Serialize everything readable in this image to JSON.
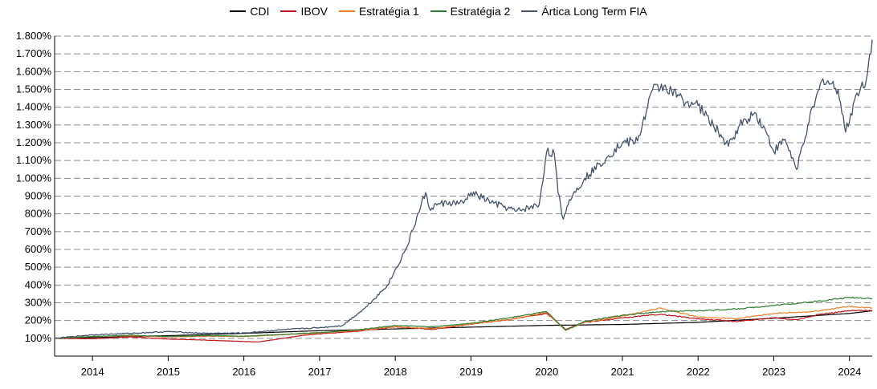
{
  "chart_data": {
    "type": "line",
    "title": "",
    "xlabel": "",
    "ylabel": "",
    "x_ticks": [
      "2014",
      "2015",
      "2016",
      "2017",
      "2018",
      "2019",
      "2020",
      "2021",
      "2022",
      "2023",
      "2024"
    ],
    "y_ticks": [
      "100%",
      "200%",
      "300%",
      "400%",
      "500%",
      "600%",
      "700%",
      "800%",
      "900%",
      "1.000%",
      "1.100%",
      "1.200%",
      "1.300%",
      "1.400%",
      "1.500%",
      "1.600%",
      "1.700%",
      "1.800%"
    ],
    "xlim": [
      2013.5,
      2024.3
    ],
    "ylim": [
      0,
      1800
    ],
    "grid": "horizontal dashed",
    "legend_position": "top",
    "series": [
      {
        "name": "CDI",
        "color": "#000000",
        "x": [
          2013.5,
          2014,
          2015,
          2016,
          2017,
          2018,
          2019,
          2020,
          2021,
          2022,
          2023,
          2024,
          2024.3
        ],
        "y": [
          100,
          104,
          115,
          128,
          143,
          153,
          163,
          173,
          178,
          190,
          213,
          240,
          255
        ]
      },
      {
        "name": "IBOV",
        "color": "#c0141c",
        "x": [
          2013.5,
          2014,
          2014.5,
          2015,
          2015.5,
          2016,
          2016.2,
          2016.8,
          2017,
          2017.5,
          2018,
          2018.5,
          2019,
          2019.5,
          2020,
          2020.25,
          2020.5,
          2021,
          2021.5,
          2022,
          2022.5,
          2023,
          2023.3,
          2023.6,
          2024,
          2024.3
        ],
        "y": [
          100,
          98,
          108,
          96,
          90,
          82,
          80,
          118,
          125,
          140,
          165,
          150,
          180,
          205,
          240,
          150,
          190,
          215,
          235,
          210,
          195,
          215,
          205,
          235,
          255,
          258
        ]
      },
      {
        "name": "Estratégia 1",
        "color": "#f07e26",
        "x": [
          2013.5,
          2014,
          2014.5,
          2015,
          2015.5,
          2016,
          2016.5,
          2017,
          2017.5,
          2018,
          2018.5,
          2019,
          2019.5,
          2020,
          2020.25,
          2020.5,
          2021,
          2021.5,
          2022,
          2022.5,
          2023,
          2023.5,
          2024,
          2024.3
        ],
        "y": [
          100,
          110,
          115,
          108,
          112,
          110,
          120,
          130,
          145,
          165,
          155,
          180,
          205,
          245,
          145,
          190,
          225,
          270,
          220,
          210,
          240,
          250,
          280,
          270
        ]
      },
      {
        "name": "Estratégia 2",
        "color": "#2e7d32",
        "x": [
          2013.5,
          2014,
          2014.5,
          2015,
          2015.5,
          2016,
          2016.5,
          2017,
          2017.5,
          2018,
          2018.5,
          2019,
          2019.5,
          2020,
          2020.25,
          2020.5,
          2021,
          2021.5,
          2022,
          2022.5,
          2023,
          2023.5,
          2024,
          2024.3
        ],
        "y": [
          100,
          110,
          118,
          110,
          115,
          112,
          122,
          132,
          148,
          172,
          165,
          185,
          215,
          250,
          145,
          195,
          230,
          250,
          255,
          265,
          285,
          305,
          330,
          325
        ]
      },
      {
        "name": "Ártica Long Term FIA",
        "color": "#44546a",
        "x": [
          2013.5,
          2014,
          2014.5,
          2015,
          2015.5,
          2016,
          2016.5,
          2017,
          2017.3,
          2017.6,
          2017.9,
          2018.15,
          2018.4,
          2018.45,
          2018.6,
          2018.9,
          2019,
          2019.3,
          2019.6,
          2019.9,
          2020,
          2020.1,
          2020.15,
          2020.22,
          2020.3,
          2020.5,
          2020.8,
          2021,
          2021.2,
          2021.4,
          2021.55,
          2021.8,
          2022,
          2022.2,
          2022.4,
          2022.55,
          2022.75,
          2022.9,
          2023.0,
          2023.15,
          2023.3,
          2023.45,
          2023.65,
          2023.85,
          2023.95,
          2024.1,
          2024.22,
          2024.3
        ],
        "y": [
          100,
          120,
          128,
          138,
          128,
          130,
          148,
          160,
          172,
          270,
          400,
          610,
          920,
          830,
          860,
          860,
          920,
          860,
          815,
          850,
          1150,
          1140,
          920,
          770,
          880,
          1000,
          1120,
          1200,
          1210,
          1500,
          1520,
          1440,
          1410,
          1300,
          1180,
          1300,
          1370,
          1260,
          1150,
          1220,
          1050,
          1300,
          1560,
          1500,
          1260,
          1480,
          1550,
          1780
        ]
      }
    ]
  }
}
